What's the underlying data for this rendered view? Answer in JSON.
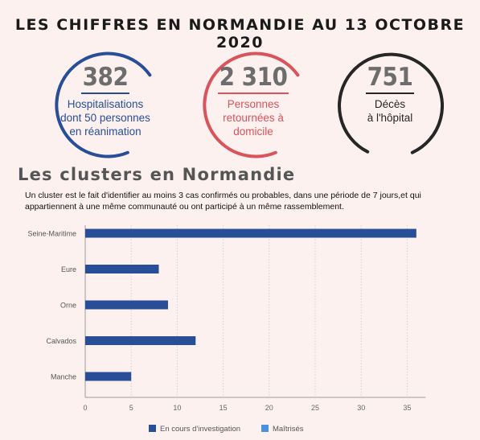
{
  "headline": "LES CHIFFRES EN NORMANDIE AU 13 OCTOBRE 2020",
  "stats": [
    {
      "value": "382",
      "lines": [
        "Hospitalisations",
        "dont 50 personnes",
        "en réanimation"
      ],
      "color": "#274e96"
    },
    {
      "value": "2 310",
      "lines": [
        "Personnes",
        "retournées à",
        "domicile"
      ],
      "color": "#d9535a"
    },
    {
      "value": "751",
      "lines": [
        "Décès",
        "à l'hôpital"
      ],
      "color": "#262626"
    }
  ],
  "section_title": "Les clusters en Normandie",
  "description": "Un cluster est le fait d'identifier au moins 3 cas confirmés ou probables, dans une période de 7 jours,et qui appartiennent à une même communauté ou ont participé à un même rassemblement.",
  "chart_data": {
    "type": "bar",
    "orientation": "horizontal",
    "categories": [
      "Seine-Maritime",
      "Eure",
      "Orne",
      "Calvados",
      "Manche"
    ],
    "series": [
      {
        "name": "En cours d'investigation",
        "values": [
          36,
          8,
          9,
          12,
          5
        ],
        "color": "#274e96"
      },
      {
        "name": "Maîtrisés",
        "values": [
          0,
          0,
          0,
          0,
          0
        ],
        "color": "#4a90e2"
      }
    ],
    "xlim": [
      0,
      37
    ],
    "ticks": [
      0,
      5,
      10,
      15,
      20,
      25,
      30,
      35
    ],
    "grid": true,
    "legend": "bottom"
  }
}
